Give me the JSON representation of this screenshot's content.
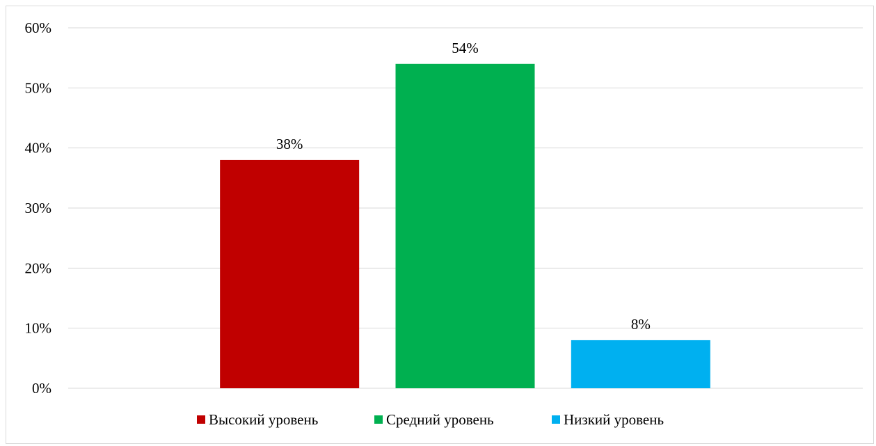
{
  "chart_data": {
    "type": "bar",
    "categories": [
      "Высокий уровень",
      "Средний уровень",
      "Низкий уровень"
    ],
    "series": [
      {
        "name": "Высокий уровень",
        "value": 38,
        "label": "38%",
        "color": "#C00000"
      },
      {
        "name": "Средний уровень",
        "value": 54,
        "label": "54%",
        "color": "#00B050"
      },
      {
        "name": "Низкий уровень",
        "value": 8,
        "label": "8%",
        "color": "#00B0F0"
      }
    ],
    "y_ticks": [
      "0%",
      "10%",
      "20%",
      "30%",
      "40%",
      "50%",
      "60%"
    ],
    "ylim": [
      0,
      60
    ],
    "grid": true,
    "legend_position": "bottom",
    "title": "",
    "xlabel": "",
    "ylabel": ""
  }
}
